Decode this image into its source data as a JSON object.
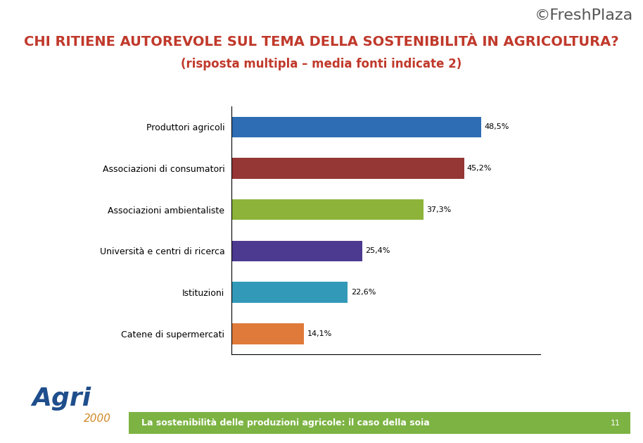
{
  "chart_data": {
    "type": "bar",
    "orientation": "horizontal",
    "title": "CHI RITIENE AUTOREVOLE SUL TEMA DELLA SOSTENIBILITÀ IN AGRICOLTURA?",
    "subtitle": "(risposta multipla – media fonti indicate 2)",
    "categories": [
      "Produttori agricoli",
      "Associazioni di consumatori",
      "Associazioni ambientaliste",
      "Università e centri di ricerca",
      "Istituzioni",
      "Catene di supermercati"
    ],
    "values": [
      48.5,
      45.2,
      37.3,
      25.4,
      22.6,
      14.1
    ],
    "value_labels": [
      "48,5%",
      "45,2%",
      "37,3%",
      "25,4%",
      "22,6%",
      "14,1%"
    ],
    "colors": [
      "#2e6db4",
      "#953735",
      "#8db33a",
      "#4b3a8f",
      "#3399b8",
      "#e07a3a"
    ],
    "xlim": [
      0,
      60
    ],
    "data_labels": true,
    "tick_labels": "y",
    "grid": false,
    "annotations": [
      "La sostenibilità delle produzioni agricole: il caso della soia",
      "Agri",
      "2000",
      "©FreshPlaza",
      "11"
    ]
  }
}
